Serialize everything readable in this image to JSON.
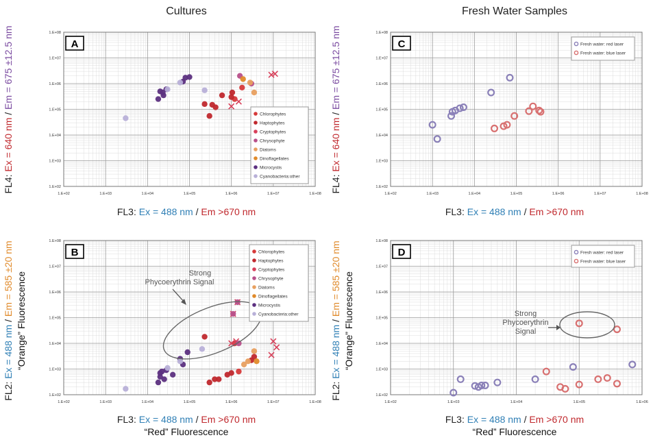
{
  "column_titles": [
    "Cultures",
    "Fresh Water Samples"
  ],
  "colors": {
    "black": "#222222",
    "red": "#c0282d",
    "purple": "#7a4aa0",
    "blue": "#2f7fb5",
    "orange": "#e08a2a",
    "Chlorophytes": "#d63a3a",
    "Haptophytes": "#c0282d",
    "Cryptophytes": "#d8405a",
    "Chrysophyte": "#b8508a",
    "Diatoms": "#e8a060",
    "Dinoflagellates": "#e08a2a",
    "Microcystis": "#5c3080",
    "Cyanobacteria:other": "#b8b0d8",
    "fw_red": "#8a80b8",
    "fw_blue": "#d87070"
  },
  "axis_labels": {
    "fl4": [
      {
        "t": "FL4: ",
        "c": "black"
      },
      {
        "t": "Ex = 640 nm",
        "c": "red"
      },
      {
        "t": " / ",
        "c": "black"
      },
      {
        "t": "Em = 675 ±12.5 nm",
        "c": "purple"
      }
    ],
    "fl3": [
      {
        "t": "FL3: ",
        "c": "black"
      },
      {
        "t": "Ex = 488 nm",
        "c": "blue"
      },
      {
        "t": " /  ",
        "c": "black"
      },
      {
        "t": "Em >670 nm",
        "c": "red"
      }
    ],
    "fl2": [
      {
        "t": "FL2: ",
        "c": "black"
      },
      {
        "t": "Ex = 488 nm",
        "c": "blue"
      },
      {
        "t": " / ",
        "c": "black"
      },
      {
        "t": "Em = 585 ±20 nm",
        "c": "orange"
      }
    ],
    "orange_fluor": "“Orange” Fluorescence",
    "red_fluor": "“Red” Fluorescence"
  },
  "chart_data": [
    {
      "panel": "A",
      "type": "scatter",
      "xscale": "log",
      "yscale": "log",
      "xlim": [
        100,
        100000000
      ],
      "ylim": [
        100,
        100000000
      ],
      "xticks": [
        "1.E+02",
        "1.E+03",
        "1.E+04",
        "1.E+05",
        "1.E+06",
        "1.E+07",
        "1.E+08"
      ],
      "yticks": [
        "1.E+02",
        "1.E+03",
        "1.E+04",
        "1.E+05",
        "1.E+06",
        "1.E+07",
        "1.E+08"
      ],
      "legend_position": "right",
      "legend": [
        "Chlorophytes",
        "Haptophytes",
        "Cryptophytes",
        "Chrysophyte",
        "Diatoms",
        "Dinoflagellates",
        "Microcystis",
        "Cyanobacteria:other"
      ],
      "series": [
        {
          "name": "Chlorophytes",
          "marker": "dot",
          "points": [
            [
              1200000,
              250000
            ],
            [
              1800000,
              700000
            ]
          ]
        },
        {
          "name": "Haptophytes",
          "marker": "dot",
          "points": [
            [
              230000,
              160000
            ],
            [
              300000,
              55000
            ],
            [
              350000,
              150000
            ],
            [
              420000,
              120000
            ],
            [
              600000,
              350000
            ],
            [
              1000000,
              300000
            ],
            [
              1050000,
              450000
            ]
          ]
        },
        {
          "name": "Cryptophytes",
          "marker": "x",
          "points": [
            [
              1000000,
              130000
            ],
            [
              1500000,
              200000
            ],
            [
              9000000,
              2200000
            ],
            [
              11000000,
              2400000
            ]
          ]
        },
        {
          "name": "Chrysophyte",
          "marker": "dot",
          "points": [
            [
              1600000,
              2000000
            ],
            [
              3000000,
              1000000
            ]
          ]
        },
        {
          "name": "Diatoms",
          "marker": "dot",
          "points": [
            [
              3500000,
              450000
            ],
            [
              2800000,
              1100000
            ]
          ]
        },
        {
          "name": "Dinoflagellates",
          "marker": "dot",
          "points": [
            [
              1900000,
              1500000
            ]
          ]
        },
        {
          "name": "Microcystis",
          "marker": "dot",
          "points": [
            [
              18000,
              250000
            ],
            [
              20000,
              500000
            ],
            [
              24000,
              350000
            ],
            [
              28000,
              600000
            ],
            [
              70000,
              1200000
            ],
            [
              80000,
              1700000
            ],
            [
              100000,
              1800000
            ],
            [
              23000,
              450000
            ]
          ]
        },
        {
          "name": "Cyanobacteria:other",
          "marker": "dot",
          "points": [
            [
              3000,
              45000
            ],
            [
              30000,
              600000
            ],
            [
              60000,
              1100000
            ],
            [
              230000,
              550000
            ]
          ]
        }
      ]
    },
    {
      "panel": "B",
      "type": "scatter",
      "xscale": "log",
      "yscale": "log",
      "xlim": [
        100,
        100000000
      ],
      "ylim": [
        100,
        100000000
      ],
      "xticks": [
        "1.E+02",
        "1.E+03",
        "1.E+04",
        "1.E+05",
        "1.E+06",
        "1.E+07",
        "1.E+08"
      ],
      "yticks": [
        "1.E+02",
        "1.E+03",
        "1.E+04",
        "1.E+05",
        "1.E+06",
        "1.E+07",
        "1.E+08"
      ],
      "legend_position": "top-right",
      "legend": [
        "Chlorophytes",
        "Haptophytes",
        "Cryptophytes",
        "Chrysophyte",
        "Diatoms",
        "Dinoflagellates",
        "Microcystis",
        "Cyanobacteria:other"
      ],
      "annotation": [
        "Strong",
        "Phycoerythrin Signal"
      ],
      "series": [
        {
          "name": "Chlorophytes",
          "marker": "dot",
          "points": [
            [
              1200000,
              10000
            ],
            [
              1500000,
              800
            ]
          ]
        },
        {
          "name": "Haptophytes",
          "marker": "dot",
          "points": [
            [
              230000,
              18000
            ],
            [
              300000,
              300
            ],
            [
              400000,
              400
            ],
            [
              500000,
              400
            ],
            [
              800000,
              600
            ],
            [
              1000000,
              700
            ],
            [
              3000000,
              2200
            ],
            [
              3500000,
              3000
            ]
          ]
        },
        {
          "name": "Cryptophytes",
          "marker": "x",
          "points": [
            [
              1000000,
              10000
            ],
            [
              1300000,
              12000
            ],
            [
              9000000,
              3500
            ],
            [
              10000000,
              12000
            ],
            [
              12000000,
              7000
            ],
            [
              1100000,
              140000
            ],
            [
              1400000,
              400000
            ]
          ]
        },
        {
          "name": "Chrysophyte",
          "marker": "dot",
          "points": [
            [
              1500000,
              10000
            ],
            [
              1100000,
              140000
            ],
            [
              1400000,
              400000
            ]
          ]
        },
        {
          "name": "Diatoms",
          "marker": "dot",
          "points": [
            [
              2000000,
              1500
            ],
            [
              2500000,
              2000
            ],
            [
              3500000,
              5000
            ]
          ]
        },
        {
          "name": "Dinoflagellates",
          "marker": "dot",
          "points": [
            [
              4000000,
              2000
            ]
          ]
        },
        {
          "name": "Microcystis",
          "marker": "dot",
          "points": [
            [
              18000,
              300
            ],
            [
              20000,
              500
            ],
            [
              22000,
              800
            ],
            [
              25000,
              400
            ],
            [
              28000,
              900
            ],
            [
              40000,
              600
            ],
            [
              60000,
              2500
            ],
            [
              90000,
              4500
            ],
            [
              70000,
              1500
            ],
            [
              20000,
              700
            ]
          ]
        },
        {
          "name": "Cyanobacteria:other",
          "marker": "dot",
          "points": [
            [
              3000,
              170
            ],
            [
              30000,
              1100
            ],
            [
              60000,
              2000
            ],
            [
              200000,
              6000
            ]
          ]
        }
      ]
    },
    {
      "panel": "C",
      "type": "scatter",
      "xscale": "log",
      "yscale": "log",
      "xlim": [
        100,
        100000000
      ],
      "ylim": [
        100,
        100000000
      ],
      "xticks": [
        "1.E+02",
        "1.E+03",
        "1.E+04",
        "1.E+05",
        "1.E+06",
        "1.E+07",
        "1.E+08"
      ],
      "yticks": [
        "1.E+02",
        "1.E+03",
        "1.E+04",
        "1.E+05",
        "1.E+06",
        "1.E+07",
        "1.E+08"
      ],
      "legend_position": "top-right",
      "legend": [
        "Fresh water: red laser",
        "Fresh water: blue laser"
      ],
      "series": [
        {
          "name": "Fresh water: red laser",
          "marker": "ring",
          "points": [
            [
              1000,
              25000
            ],
            [
              1300,
              7000
            ],
            [
              2800,
              55000
            ],
            [
              3000,
              80000
            ],
            [
              3500,
              90000
            ],
            [
              4500,
              110000
            ],
            [
              5500,
              120000
            ],
            [
              25000,
              450000
            ],
            [
              70000,
              1700000
            ]
          ]
        },
        {
          "name": "Fresh water: blue laser",
          "marker": "ring",
          "points": [
            [
              30000,
              18000
            ],
            [
              50000,
              22000
            ],
            [
              60000,
              25000
            ],
            [
              90000,
              55000
            ],
            [
              200000,
              85000
            ],
            [
              250000,
              130000
            ],
            [
              350000,
              90000
            ],
            [
              380000,
              80000
            ]
          ]
        }
      ]
    },
    {
      "panel": "D",
      "type": "scatter",
      "xscale": "log",
      "yscale": "log",
      "xlim": [
        100,
        1000000
      ],
      "ylim": [
        100,
        100000000
      ],
      "xticks": [
        "1.E+02",
        "1.E+03",
        "1.E+04",
        "1.E+05",
        "1.E+06"
      ],
      "yticks": [
        "1.E+02",
        "1.E+03",
        "1.E+04",
        "1.E+05",
        "1.E+06",
        "1.E+07",
        "1.E+08"
      ],
      "legend_position": "top-right",
      "legend": [
        "Fresh water: red laser",
        "Fresh water: blue laser"
      ],
      "annotation": [
        "Strong",
        "Phycoerythrin",
        "Signal"
      ],
      "series": [
        {
          "name": "Fresh water: red laser",
          "marker": "ring",
          "points": [
            [
              1000,
              120
            ],
            [
              1300,
              400
            ],
            [
              2200,
              220
            ],
            [
              2500,
              200
            ],
            [
              2800,
              230
            ],
            [
              3200,
              230
            ],
            [
              5000,
              300
            ],
            [
              20000,
              400
            ],
            [
              80000,
              1200
            ],
            [
              700000,
              1500
            ]
          ]
        },
        {
          "name": "Fresh water: blue laser",
          "marker": "ring",
          "points": [
            [
              30000,
              800
            ],
            [
              50000,
              200
            ],
            [
              60000,
              170
            ],
            [
              100000,
              250
            ],
            [
              100000,
              60000
            ],
            [
              200000,
              400
            ],
            [
              280000,
              450
            ],
            [
              400000,
              270
            ],
            [
              400000,
              35000
            ]
          ]
        }
      ]
    }
  ]
}
